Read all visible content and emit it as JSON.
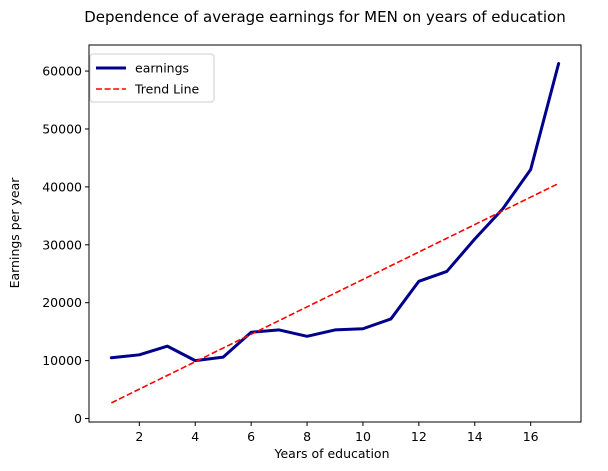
{
  "chart_data": {
    "type": "line",
    "title": "Dependence of average earnings for MEN on years of education",
    "xlabel": "Years of education",
    "ylabel": "Earnings per year",
    "xlim": [
      0.2,
      17.8
    ],
    "ylim": [
      -600,
      64500
    ],
    "xticks": [
      2,
      4,
      6,
      8,
      10,
      12,
      14,
      16
    ],
    "yticks": [
      0,
      10000,
      20000,
      30000,
      40000,
      50000,
      60000
    ],
    "grid": false,
    "legend_position": "upper-left",
    "series": [
      {
        "name": "earnings",
        "color": "#00008b",
        "style": "solid",
        "x": [
          1,
          2,
          3,
          4,
          5,
          6,
          7,
          8,
          9,
          10,
          11,
          12,
          13,
          14,
          15,
          16,
          17
        ],
        "y": [
          10500,
          11000,
          12500,
          10000,
          10600,
          14900,
          15300,
          14200,
          15300,
          15500,
          17200,
          23700,
          25400,
          31000,
          36200,
          43000,
          61300
        ]
      },
      {
        "name": "Trend Line",
        "color": "#ff0000",
        "style": "dashed",
        "x": [
          1,
          17
        ],
        "y": [
          2700,
          40600
        ]
      }
    ]
  }
}
